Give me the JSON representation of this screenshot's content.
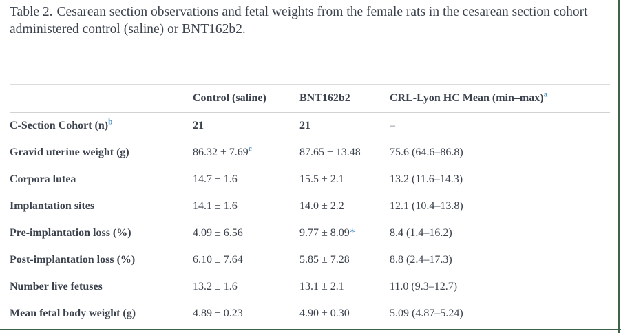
{
  "page": {
    "frame_color": "#3e6349",
    "text_color": "#3c434e",
    "footnote_marker_color": "#5094c7",
    "rule_color": "#d2d2d2"
  },
  "caption": {
    "label": "Table 2.",
    "text": "Cesarean section observations and fetal weights from the female rats in the cesarean section cohort administered control (saline) or BNT162b2."
  },
  "table": {
    "columns": [
      {
        "label": ""
      },
      {
        "label": "Control (saline)"
      },
      {
        "label": "BNT162b2"
      },
      {
        "label": "CRL-Lyon HC Mean (min–max)",
        "sup": "a"
      }
    ],
    "rows": [
      {
        "label": "C-Section Cohort (n)",
        "label_sup": "b",
        "control": "21",
        "bnt": "21",
        "crl": "–"
      },
      {
        "label": "Gravid uterine weight (g)",
        "control": "86.32 ± 7.69",
        "control_sup": "c",
        "bnt": "87.65 ± 13.48",
        "crl": "75.6 (64.6–86.8)"
      },
      {
        "label": "Corpora lutea",
        "control": "14.7 ± 1.6",
        "bnt": "15.5 ± 2.1",
        "crl": "13.2 (11.6–14.3)"
      },
      {
        "label": "Implantation sites",
        "control": "14.1 ± 1.6",
        "bnt": "14.0 ± 2.2",
        "crl": "12.1 (10.4–13.8)"
      },
      {
        "label": "Pre-implantation loss (%)",
        "control": "4.09 ± 6.56",
        "bnt": "9.77 ± 8.09",
        "bnt_mark": "*",
        "crl": "8.4 (1.4–16.2)"
      },
      {
        "label": "Post-implantation loss (%)",
        "control": "6.10 ± 7.64",
        "bnt": "5.85 ± 7.28",
        "crl": "8.8 (2.4–17.3)"
      },
      {
        "label": "Number live fetuses",
        "control": "13.2 ± 1.6",
        "bnt": "13.1 ± 2.1",
        "crl": "11.0 (9.3–12.7)"
      },
      {
        "label": "Mean fetal body weight (g)",
        "control": "4.89 ± 0.23",
        "bnt": "4.90 ± 0.30",
        "crl": "5.09 (4.87–5.24)"
      }
    ]
  }
}
